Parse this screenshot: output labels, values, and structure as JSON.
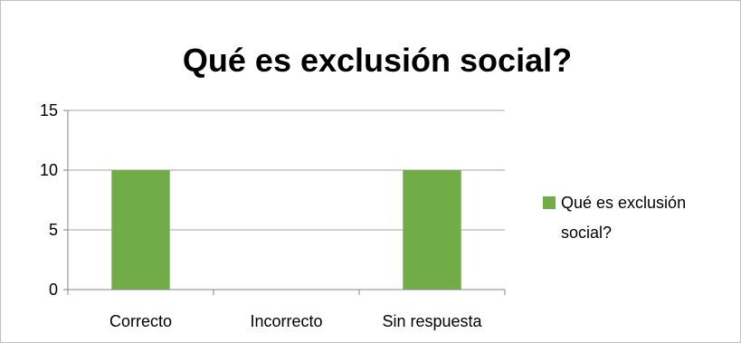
{
  "chart_data": {
    "type": "bar",
    "title": "Qué es exclusión social?",
    "categories": [
      "Correcto",
      "Incorrecto",
      "Sin respuesta"
    ],
    "series": [
      {
        "name": "Qué es exclusión social?",
        "legend_lines": [
          "Qué es exclusión",
          "social?"
        ],
        "values": [
          10,
          0,
          10
        ],
        "color": "#70ad47"
      }
    ],
    "ylim": [
      0,
      15
    ],
    "yticks": [
      0,
      5,
      10,
      15
    ],
    "grid": true,
    "legend_position": "right",
    "xlabel": "",
    "ylabel": ""
  },
  "colors": {
    "gridline": "#a6a6a6",
    "axis": "#868686",
    "border": "#bfbfbf"
  }
}
